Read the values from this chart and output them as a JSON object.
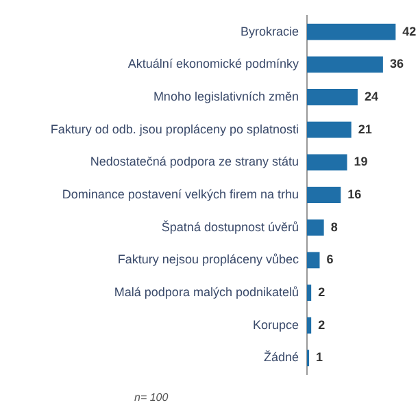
{
  "chart_data": {
    "type": "bar",
    "orientation": "horizontal",
    "categories": [
      "Byrokracie",
      "Aktuální ekonomické podmínky",
      "Mnoho legislativních změn",
      "Faktury od odb. jsou propláceny po splatnosti",
      "Nedostatečná podpora ze strany státu",
      "Dominance postavení velkých firem na trhu",
      "Špatná dostupnost úvěrů",
      "Faktury nejsou propláceny vůbec",
      "Malá podpora malých podnikatelů",
      "Korupce",
      "Žádné"
    ],
    "values": [
      42,
      36,
      24,
      21,
      19,
      16,
      8,
      6,
      2,
      2,
      1
    ],
    "color": "#1f6fa8",
    "data_labels": true,
    "grid": false,
    "legend": false,
    "annotations": [
      "n= 100"
    ]
  }
}
